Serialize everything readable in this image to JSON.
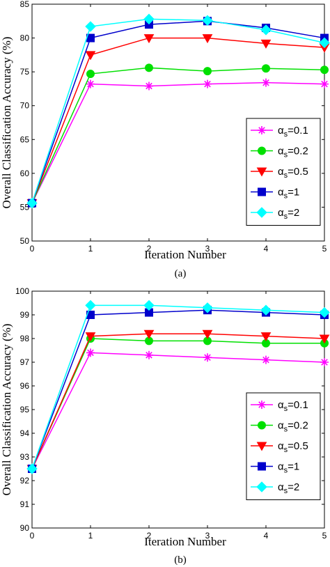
{
  "chart_data": [
    {
      "type": "line",
      "caption": "(a)",
      "xlabel": "Iteration Number",
      "ylabel": "Overall Classification Accuracy (%)",
      "x": [
        0,
        1,
        2,
        3,
        4,
        5
      ],
      "xlim": [
        0,
        5
      ],
      "ylim": [
        50,
        85
      ],
      "xticks": [
        "0",
        "1",
        "2",
        "3",
        "4",
        "5"
      ],
      "yticks": [
        "50",
        "55",
        "60",
        "65",
        "70",
        "75",
        "80",
        "85"
      ],
      "grid": false,
      "legend_position": "bottom-right",
      "series": [
        {
          "name": "α_s=0.1",
          "greek": "α",
          "sub": "s",
          "value_label": "=0.1",
          "color": "#ff00ff",
          "marker": "star",
          "values": [
            55.6,
            73.2,
            72.9,
            73.2,
            73.4,
            73.2
          ]
        },
        {
          "name": "α_s=0.2",
          "greek": "α",
          "sub": "s",
          "value_label": "=0.2",
          "color": "#00e000",
          "marker": "circle",
          "values": [
            55.6,
            74.7,
            75.6,
            75.1,
            75.5,
            75.3
          ]
        },
        {
          "name": "α_s=0.5",
          "greek": "α",
          "sub": "s",
          "value_label": "=0.5",
          "color": "#ff0000",
          "marker": "triangle-down",
          "values": [
            55.6,
            77.5,
            80.0,
            80.0,
            79.2,
            78.6
          ]
        },
        {
          "name": "α_s=1",
          "greek": "α",
          "sub": "s",
          "value_label": "=1",
          "color": "#0000cc",
          "marker": "square",
          "values": [
            55.6,
            80.0,
            82.0,
            82.5,
            81.5,
            80.0
          ]
        },
        {
          "name": "α_s=2",
          "greek": "α",
          "sub": "s",
          "value_label": "=2",
          "color": "#00ffff",
          "marker": "diamond",
          "values": [
            55.6,
            81.7,
            82.8,
            82.6,
            81.2,
            79.3
          ]
        }
      ]
    },
    {
      "type": "line",
      "caption": "(b)",
      "xlabel": "Iteration Number",
      "ylabel": "Overall Classification Accuracy (%)",
      "x": [
        0,
        1,
        2,
        3,
        4,
        5
      ],
      "xlim": [
        0,
        5
      ],
      "ylim": [
        90,
        100
      ],
      "xticks": [
        "0",
        "1",
        "2",
        "3",
        "4",
        "5"
      ],
      "yticks": [
        "90",
        "91",
        "92",
        "93",
        "94",
        "95",
        "96",
        "97",
        "98",
        "99",
        "100"
      ],
      "grid": false,
      "legend_position": "bottom-right",
      "series": [
        {
          "name": "α_s=0.1",
          "greek": "α",
          "sub": "s",
          "value_label": "=0.1",
          "color": "#ff00ff",
          "marker": "star",
          "values": [
            92.5,
            97.4,
            97.3,
            97.2,
            97.1,
            97.0
          ]
        },
        {
          "name": "α_s=0.2",
          "greek": "α",
          "sub": "s",
          "value_label": "=0.2",
          "color": "#00e000",
          "marker": "circle",
          "values": [
            92.5,
            98.0,
            97.9,
            97.9,
            97.8,
            97.8
          ]
        },
        {
          "name": "α_s=0.5",
          "greek": "α",
          "sub": "s",
          "value_label": "=0.5",
          "color": "#ff0000",
          "marker": "triangle-down",
          "values": [
            92.5,
            98.1,
            98.2,
            98.2,
            98.1,
            98.0
          ]
        },
        {
          "name": "α_s=1",
          "greek": "α",
          "sub": "s",
          "value_label": "=1",
          "color": "#0000cc",
          "marker": "square",
          "values": [
            92.5,
            99.0,
            99.1,
            99.2,
            99.1,
            99.0
          ]
        },
        {
          "name": "α_s=2",
          "greek": "α",
          "sub": "s",
          "value_label": "=2",
          "color": "#00ffff",
          "marker": "diamond",
          "values": [
            92.5,
            99.4,
            99.4,
            99.3,
            99.2,
            99.1
          ]
        }
      ]
    }
  ]
}
